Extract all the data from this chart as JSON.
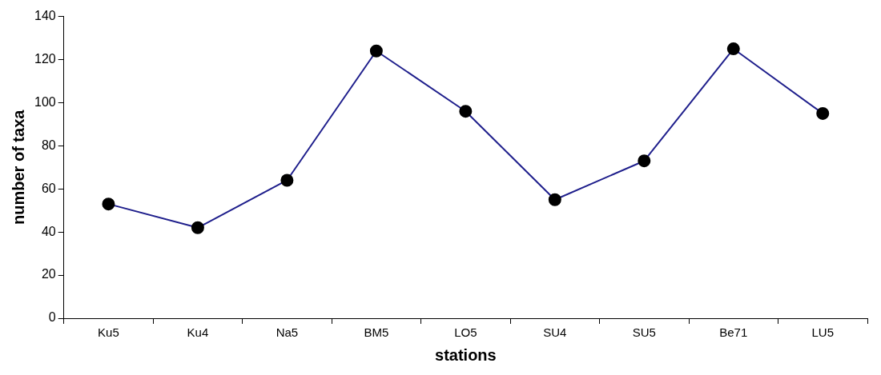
{
  "chart_data": {
    "type": "line",
    "xlabel": "stations",
    "ylabel": "number of taxa",
    "categories": [
      "Ku5",
      "Ku4",
      "Na5",
      "BM5",
      "LO5",
      "SU4",
      "SU5",
      "Be71",
      "LU5"
    ],
    "series": [
      {
        "color": "#1f1f8c",
        "values": [
          53,
          42,
          64,
          124,
          96,
          55,
          73,
          125,
          95
        ]
      }
    ],
    "ylim": [
      0,
      140
    ],
    "yticks": [
      0,
      20,
      40,
      60,
      80,
      100,
      120,
      140
    ],
    "grid": false,
    "legend": false,
    "marker": "circle",
    "line_style": "solid"
  }
}
